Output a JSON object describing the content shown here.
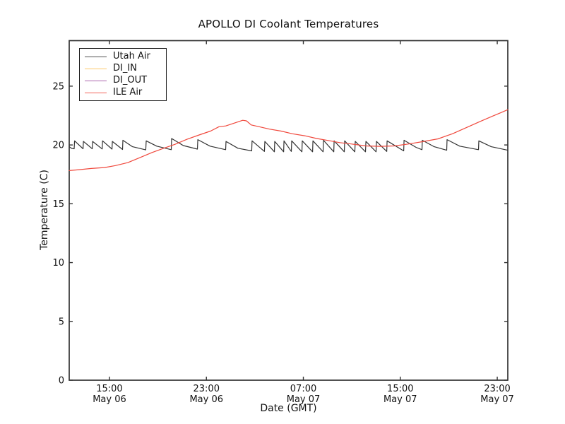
{
  "chart_data": {
    "type": "line",
    "title": "APOLLO DI Coolant Temperatures",
    "xlabel": "Date (GMT)",
    "ylabel": "Temperature (C)",
    "grid": false,
    "legend_position": "upper left",
    "x_unit": "hours since May 06 00:00 GMT",
    "xlim": [
      11.68,
      47.87
    ],
    "ylim": [
      0,
      28.87
    ],
    "yticks": [
      0,
      5,
      10,
      15,
      20,
      25
    ],
    "xticks": [
      {
        "t": 15,
        "line1": "15:00",
        "line2": "May 06"
      },
      {
        "t": 23,
        "line1": "23:00",
        "line2": "May 06"
      },
      {
        "t": 31,
        "line1": "07:00",
        "line2": "May 07"
      },
      {
        "t": 39,
        "line1": "15:00",
        "line2": "May 07"
      },
      {
        "t": 47,
        "line1": "23:00",
        "line2": "May 07"
      }
    ],
    "series": [
      {
        "name": "Utah Air",
        "color": "#333333",
        "points": [
          [
            11.68,
            19.85
          ],
          [
            11.9,
            19.7
          ],
          [
            12.09,
            19.68
          ],
          [
            12.12,
            20.35
          ],
          [
            12.82,
            19.68
          ],
          [
            12.85,
            20.3
          ],
          [
            13.58,
            19.68
          ],
          [
            13.61,
            20.3
          ],
          [
            14.4,
            19.66
          ],
          [
            14.43,
            20.35
          ],
          [
            15.21,
            19.65
          ],
          [
            15.24,
            20.3
          ],
          [
            16.08,
            19.62
          ],
          [
            16.11,
            20.4
          ],
          [
            16.9,
            19.85
          ],
          [
            18.0,
            19.58
          ],
          [
            18.03,
            20.35
          ],
          [
            18.9,
            19.9
          ],
          [
            20.1,
            19.6
          ],
          [
            20.13,
            20.55
          ],
          [
            21.1,
            19.95
          ],
          [
            22.26,
            19.65
          ],
          [
            22.29,
            20.45
          ],
          [
            23.3,
            19.9
          ],
          [
            24.59,
            19.6
          ],
          [
            24.62,
            20.3
          ],
          [
            25.6,
            19.72
          ],
          [
            26.74,
            19.5
          ],
          [
            26.77,
            20.35
          ],
          [
            27.79,
            19.45
          ],
          [
            27.82,
            20.3
          ],
          [
            28.61,
            19.42
          ],
          [
            28.64,
            20.3
          ],
          [
            29.37,
            19.42
          ],
          [
            29.4,
            20.35
          ],
          [
            30.01,
            19.45
          ],
          [
            30.04,
            20.35
          ],
          [
            30.88,
            19.42
          ],
          [
            30.91,
            20.35
          ],
          [
            31.76,
            19.42
          ],
          [
            31.79,
            20.35
          ],
          [
            32.63,
            19.42
          ],
          [
            32.66,
            20.4
          ],
          [
            33.51,
            19.42
          ],
          [
            33.54,
            20.35
          ],
          [
            34.38,
            19.42
          ],
          [
            34.41,
            20.35
          ],
          [
            35.25,
            19.42
          ],
          [
            35.28,
            20.3
          ],
          [
            36.13,
            19.42
          ],
          [
            36.16,
            20.3
          ],
          [
            37.0,
            19.42
          ],
          [
            37.03,
            20.3
          ],
          [
            37.88,
            19.45
          ],
          [
            37.91,
            20.35
          ],
          [
            39.28,
            19.5
          ],
          [
            39.31,
            20.4
          ],
          [
            40.3,
            19.8
          ],
          [
            40.79,
            19.6
          ],
          [
            40.82,
            20.4
          ],
          [
            41.8,
            19.85
          ],
          [
            42.83,
            19.55
          ],
          [
            42.86,
            20.45
          ],
          [
            43.9,
            19.9
          ],
          [
            45.45,
            19.6
          ],
          [
            45.48,
            20.35
          ],
          [
            46.5,
            19.85
          ],
          [
            47.87,
            19.55
          ]
        ]
      },
      {
        "name": "DI_IN",
        "color": "#fdbe4f",
        "points": []
      },
      {
        "name": "DI_OUT",
        "color": "#9b4ba0",
        "points": []
      },
      {
        "name": "ILE Air",
        "color": "#f0483c",
        "points": [
          [
            11.68,
            17.82
          ],
          [
            12.5,
            17.9
          ],
          [
            13.5,
            18.0
          ],
          [
            14.59,
            18.08
          ],
          [
            15.5,
            18.25
          ],
          [
            16.52,
            18.5
          ],
          [
            17.68,
            19.0
          ],
          [
            18.5,
            19.35
          ],
          [
            19.43,
            19.7
          ],
          [
            20.4,
            20.05
          ],
          [
            21.4,
            20.48
          ],
          [
            22.4,
            20.85
          ],
          [
            23.34,
            21.18
          ],
          [
            24.04,
            21.55
          ],
          [
            24.6,
            21.62
          ],
          [
            25.28,
            21.85
          ],
          [
            26.0,
            22.1
          ],
          [
            26.3,
            22.05
          ],
          [
            26.7,
            21.7
          ],
          [
            27.22,
            21.58
          ],
          [
            28.2,
            21.35
          ],
          [
            29.17,
            21.18
          ],
          [
            30.1,
            20.95
          ],
          [
            31.11,
            20.78
          ],
          [
            32.1,
            20.55
          ],
          [
            33.05,
            20.38
          ],
          [
            34.0,
            20.2
          ],
          [
            34.99,
            20.08
          ],
          [
            36.16,
            19.92
          ],
          [
            37.33,
            19.88
          ],
          [
            38.49,
            19.92
          ],
          [
            39.66,
            20.08
          ],
          [
            40.82,
            20.28
          ],
          [
            42.11,
            20.52
          ],
          [
            43.3,
            20.95
          ],
          [
            44.5,
            21.5
          ],
          [
            45.6,
            22.0
          ],
          [
            46.6,
            22.45
          ],
          [
            47.3,
            22.75
          ],
          [
            47.87,
            23.0
          ]
        ]
      }
    ]
  },
  "figure": {
    "background": "#ffffff",
    "spine_color": "#333333"
  }
}
